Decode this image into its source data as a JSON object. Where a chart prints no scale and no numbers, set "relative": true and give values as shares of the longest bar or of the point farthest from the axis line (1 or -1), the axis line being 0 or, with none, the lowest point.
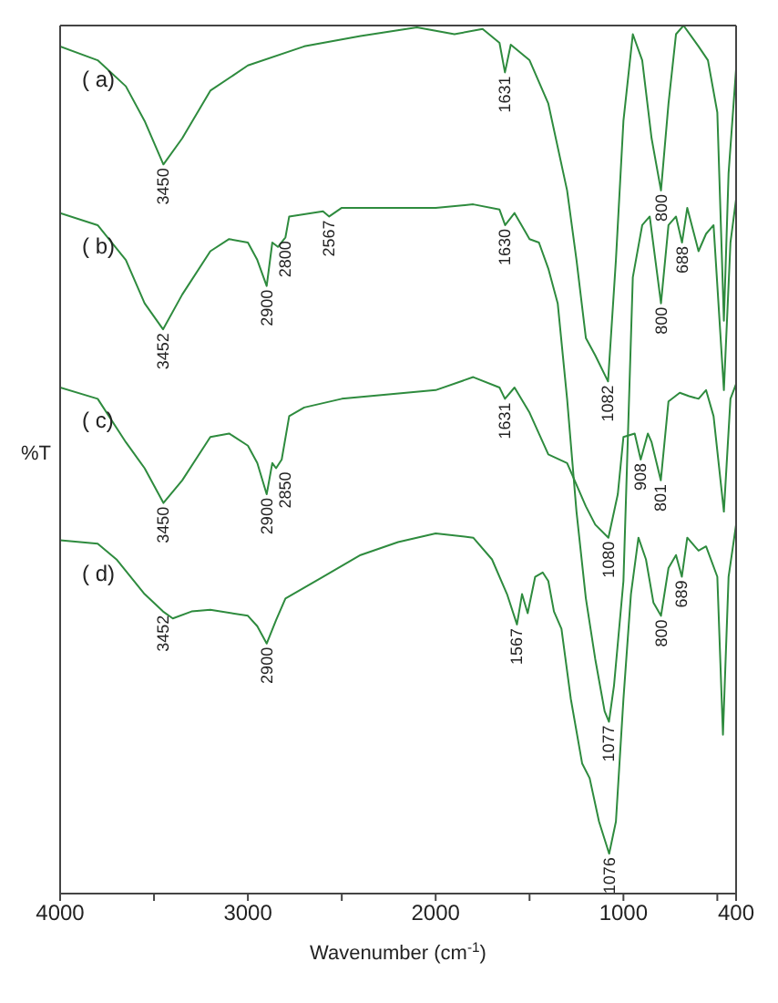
{
  "chart_data": {
    "type": "line",
    "relative": true,
    "xlabel": "Wavenumber (cm$^{-1}$)",
    "ylabel": "%T",
    "xlim": [
      4000,
      400
    ],
    "xticks": [
      4000,
      {
        "value": 3500,
        "label": null
      },
      3000,
      {
        "value": 2500,
        "label": null
      },
      2000,
      {
        "value": 1500,
        "label": null
      },
      1000,
      {
        "value": 500,
        "label": null
      },
      400
    ],
    "series": [
      {
        "name": "( a)",
        "color": "#2e8b3e",
        "x": [
          4000,
          3800,
          3650,
          3550,
          3450,
          3350,
          3200,
          3000,
          2700,
          2400,
          2100,
          1900,
          1750,
          1660,
          1631,
          1600,
          1500,
          1400,
          1300,
          1250,
          1200,
          1150,
          1082,
          1040,
          1000,
          950,
          900,
          850,
          800,
          760,
          720,
          680,
          600,
          550,
          500,
          465,
          440,
          400
        ],
        "values": [
          0.976,
          0.96,
          0.93,
          0.89,
          0.84,
          0.87,
          0.925,
          0.954,
          0.976,
          0.988,
          0.998,
          0.99,
          0.996,
          0.98,
          0.946,
          0.978,
          0.96,
          0.91,
          0.81,
          0.73,
          0.64,
          0.62,
          0.59,
          0.73,
          0.89,
          0.99,
          0.96,
          0.87,
          0.81,
          0.91,
          0.99,
          1.0,
          0.976,
          0.96,
          0.9,
          0.66,
          0.83,
          0.95
        ]
      },
      {
        "name": "( b)",
        "color": "#2e8b3e",
        "x": [
          4000,
          3800,
          3650,
          3550,
          3452,
          3350,
          3200,
          3100,
          3000,
          2950,
          2900,
          2870,
          2840,
          2800,
          2780,
          2600,
          2567,
          2500,
          2000,
          1800,
          1660,
          1630,
          1580,
          1500,
          1450,
          1400,
          1350,
          1300,
          1250,
          1200,
          1150,
          1100,
          1077,
          1050,
          1000,
          950,
          900,
          860,
          800,
          760,
          720,
          688,
          660,
          600,
          560,
          520,
          465,
          430,
          400
        ],
        "values": [
          0.784,
          0.77,
          0.73,
          0.68,
          0.65,
          0.69,
          0.74,
          0.754,
          0.75,
          0.73,
          0.7,
          0.75,
          0.745,
          0.756,
          0.78,
          0.786,
          0.78,
          0.79,
          0.79,
          0.794,
          0.788,
          0.77,
          0.784,
          0.754,
          0.75,
          0.72,
          0.68,
          0.57,
          0.44,
          0.34,
          0.27,
          0.21,
          0.198,
          0.24,
          0.36,
          0.71,
          0.77,
          0.78,
          0.68,
          0.77,
          0.78,
          0.75,
          0.79,
          0.74,
          0.76,
          0.77,
          0.58,
          0.75,
          0.8
        ]
      },
      {
        "name": "( c)",
        "color": "#2e8b3e",
        "x": [
          4000,
          3800,
          3650,
          3550,
          3450,
          3350,
          3200,
          3100,
          3000,
          2950,
          2900,
          2870,
          2850,
          2820,
          2780,
          2700,
          2500,
          2000,
          1800,
          1660,
          1631,
          1580,
          1500,
          1400,
          1300,
          1200,
          1150,
          1080,
          1030,
          1000,
          940,
          908,
          870,
          850,
          801,
          760,
          700,
          650,
          600,
          560,
          520,
          465,
          430,
          400
        ],
        "values": [
          0.583,
          0.57,
          0.52,
          0.49,
          0.45,
          0.476,
          0.526,
          0.53,
          0.516,
          0.496,
          0.46,
          0.496,
          0.49,
          0.5,
          0.55,
          0.56,
          0.57,
          0.58,
          0.595,
          0.583,
          0.57,
          0.583,
          0.554,
          0.506,
          0.496,
          0.446,
          0.425,
          0.41,
          0.46,
          0.526,
          0.53,
          0.5,
          0.53,
          0.52,
          0.476,
          0.567,
          0.577,
          0.573,
          0.57,
          0.58,
          0.55,
          0.44,
          0.57,
          0.587
        ]
      },
      {
        "name": "( d)",
        "color": "#2e8b3e",
        "x": [
          4000,
          3800,
          3700,
          3550,
          3452,
          3400,
          3300,
          3200,
          3000,
          2950,
          2900,
          2850,
          2800,
          2600,
          2400,
          2200,
          2000,
          1800,
          1700,
          1620,
          1567,
          1540,
          1510,
          1470,
          1430,
          1400,
          1370,
          1330,
          1280,
          1220,
          1180,
          1130,
          1076,
          1040,
          1000,
          960,
          920,
          880,
          840,
          800,
          760,
          720,
          689,
          660,
          600,
          560,
          500,
          470,
          440,
          400
        ],
        "values": [
          0.407,
          0.403,
          0.385,
          0.345,
          0.325,
          0.317,
          0.325,
          0.327,
          0.32,
          0.308,
          0.288,
          0.315,
          0.34,
          0.365,
          0.39,
          0.405,
          0.415,
          0.41,
          0.385,
          0.345,
          0.31,
          0.345,
          0.323,
          0.365,
          0.37,
          0.36,
          0.325,
          0.305,
          0.224,
          0.15,
          0.133,
          0.083,
          0.046,
          0.083,
          0.224,
          0.345,
          0.41,
          0.385,
          0.335,
          0.32,
          0.375,
          0.39,
          0.365,
          0.41,
          0.395,
          0.4,
          0.365,
          0.183,
          0.365,
          0.425
        ]
      }
    ],
    "annotations": [
      {
        "text": "3450",
        "x": 3450,
        "y": 0.84
      },
      {
        "text": "1631",
        "x": 1631,
        "y": 0.946
      },
      {
        "text": "1082",
        "x": 1082,
        "y": 0.59
      },
      {
        "text": "800",
        "x": 800,
        "y": 0.81
      },
      {
        "text": "3452",
        "x": 3452,
        "y": 0.65
      },
      {
        "text": "2900",
        "x": 2900,
        "y": 0.7
      },
      {
        "text": "2800",
        "x": 2800,
        "y": 0.756
      },
      {
        "text": "2567",
        "x": 2567,
        "y": 0.78
      },
      {
        "text": "1630",
        "x": 1630,
        "y": 0.77
      },
      {
        "text": "800",
        "x": 800,
        "y": 0.68
      },
      {
        "text": "688",
        "x": 688,
        "y": 0.75
      },
      {
        "text": "1077",
        "x": 1077,
        "y": 0.198
      },
      {
        "text": "3450",
        "x": 3450,
        "y": 0.45
      },
      {
        "text": "2900",
        "x": 2900,
        "y": 0.46
      },
      {
        "text": "2850",
        "x": 2850,
        "y": 0.49
      },
      {
        "text": "1631",
        "x": 1631,
        "y": 0.57
      },
      {
        "text": "1080",
        "x": 1080,
        "y": 0.41
      },
      {
        "text": "908",
        "x": 908,
        "y": 0.5
      },
      {
        "text": "801",
        "x": 801,
        "y": 0.476
      },
      {
        "text": "3452",
        "x": 3452,
        "y": 0.325
      },
      {
        "text": "2900",
        "x": 2900,
        "y": 0.288
      },
      {
        "text": "1567",
        "x": 1567,
        "y": 0.31
      },
      {
        "text": "1076",
        "x": 1076,
        "y": 0.046
      },
      {
        "text": "800",
        "x": 800,
        "y": 0.32
      },
      {
        "text": "689",
        "x": 689,
        "y": 0.365
      }
    ]
  }
}
